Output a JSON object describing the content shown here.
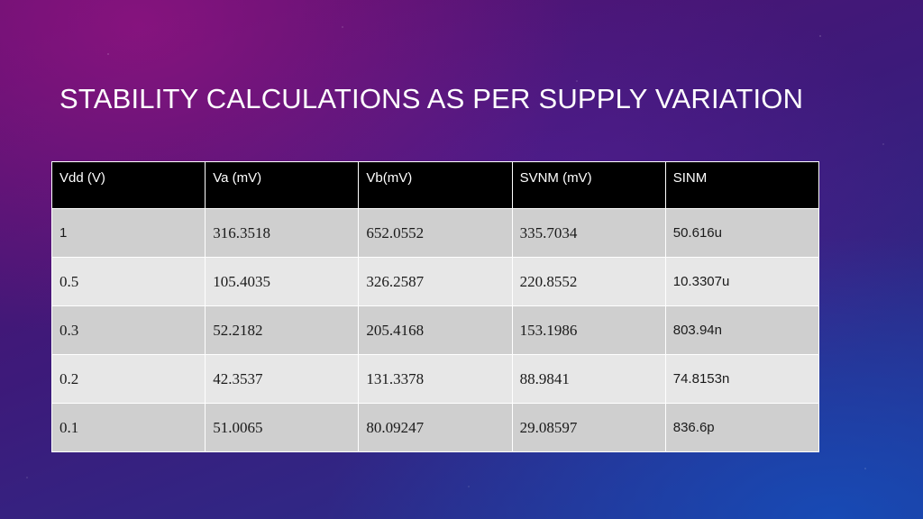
{
  "slide": {
    "title": "STABILITY CALCULATIONS AS PER SUPPLY VARIATION"
  },
  "table": {
    "headers": [
      "Vdd (V)",
      "Va (mV)",
      "Vb(mV)",
      "SVNM (mV)",
      "SINM"
    ],
    "rows": [
      [
        "1",
        "316.3518",
        "652.0552",
        "335.7034",
        "50.616u"
      ],
      [
        "0.5",
        "105.4035",
        "326.2587",
        "220.8552",
        "10.3307u"
      ],
      [
        "0.3",
        "52.2182",
        "205.4168",
        "153.1986",
        "803.94n"
      ],
      [
        "0.2",
        "42.3537",
        "131.3378",
        "88.9841",
        "74.8153n"
      ],
      [
        "0.1",
        "51.0065",
        "80.09247",
        "29.08597",
        "836.6p"
      ]
    ]
  },
  "colors": {
    "header_bg": "#000000",
    "row_dark": "#cfcfcf",
    "row_light": "#e7e7e7"
  }
}
